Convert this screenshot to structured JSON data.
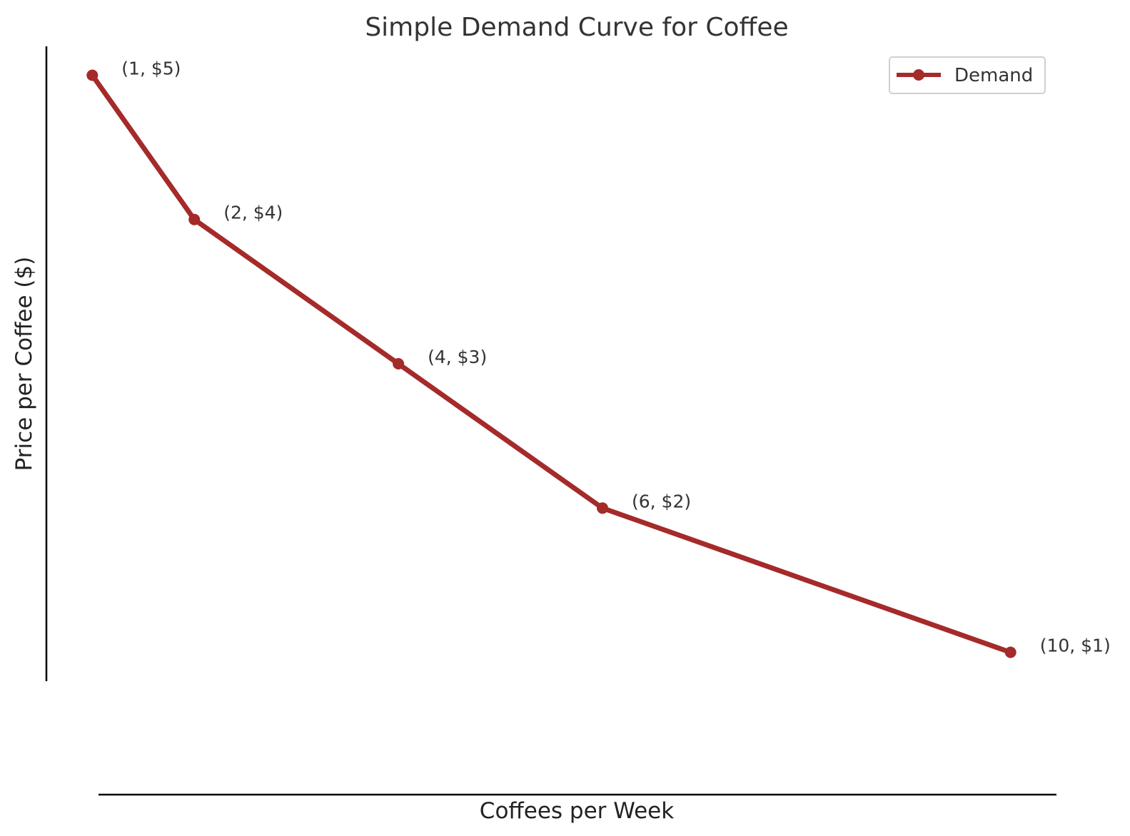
{
  "chart_data": {
    "type": "line",
    "title": "Simple Demand Curve for Coffee",
    "xlabel": "Coffees per Week",
    "ylabel": "Price per Coffee ($)",
    "xlim": [
      0.55,
      10.45
    ],
    "ylim": [
      0.8,
      5.2
    ],
    "grid": false,
    "legend_position": "top-right",
    "series": [
      {
        "name": "Demand",
        "color": "#a52a2a",
        "marker": "circle",
        "x": [
          1,
          2,
          4,
          6,
          10
        ],
        "y": [
          5,
          4,
          3,
          2,
          1
        ]
      }
    ],
    "annotations": [
      "(1, $5)",
      "(2, $4)",
      "(4, $3)",
      "(6, $2)",
      "(10, $1)"
    ],
    "axis_color": "#000000"
  }
}
